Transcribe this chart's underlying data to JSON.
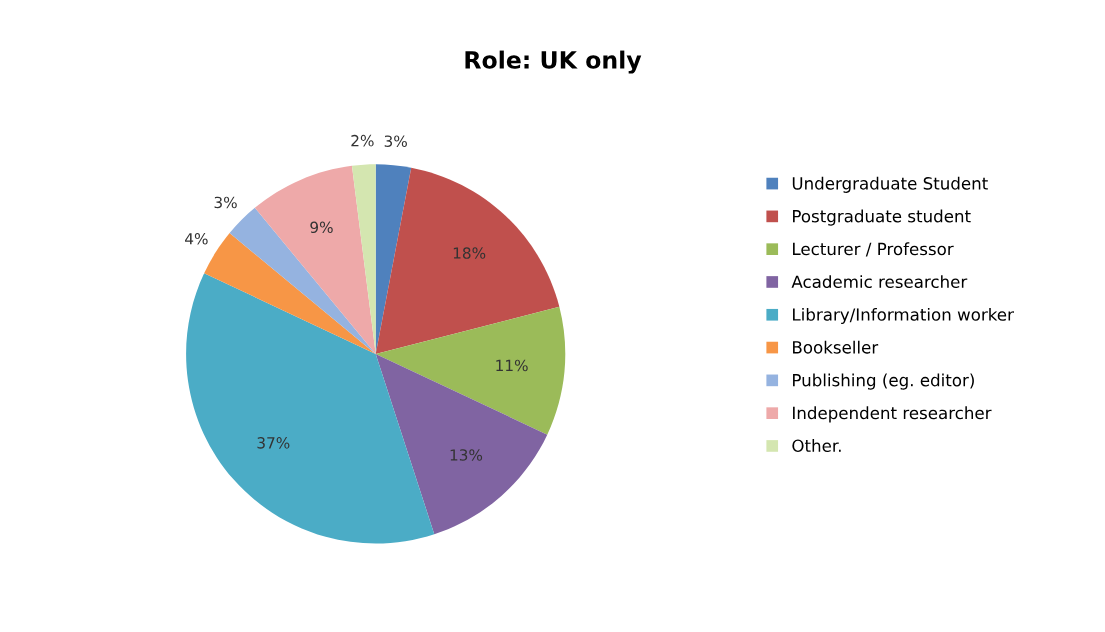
{
  "chart_data": {
    "type": "pie",
    "title": "Role: UK only",
    "categories": [
      "Undergraduate Student",
      "Postgraduate student",
      "Lecturer / Professor",
      "Academic researcher",
      "Library/Information worker",
      "Bookseller",
      "Publishing (eg. editor)",
      "Independent researcher",
      "Other."
    ],
    "values": [
      3,
      18,
      11,
      13,
      37,
      4,
      3,
      9,
      2
    ],
    "value_labels": [
      "3%",
      "18%",
      "11%",
      "13%",
      "37%",
      "4%",
      "3%",
      "9%",
      "2%"
    ],
    "colors": [
      "#4f81bd",
      "#c0504d",
      "#9bbb59",
      "#8064a2",
      "#4bacc6",
      "#f79646",
      "#95b3e0",
      "#eea9a9",
      "#d4e6b0"
    ],
    "legend": "right"
  }
}
